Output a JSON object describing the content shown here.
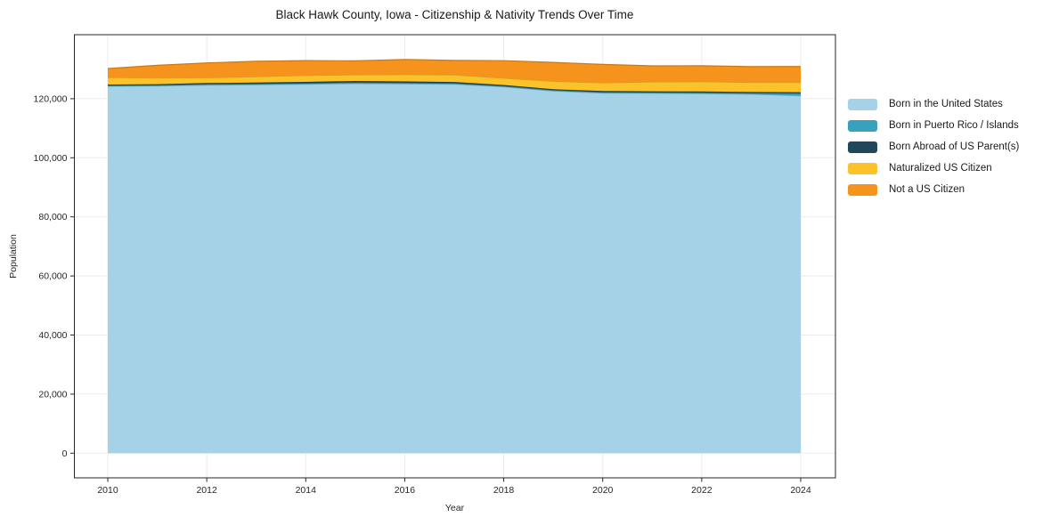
{
  "figure": {
    "title": "Black Hawk County, Iowa - Citizenship & Nativity Trends Over Time",
    "xlabel": "Year",
    "ylabel": "Population"
  },
  "chart_data": {
    "type": "area",
    "stacked": true,
    "title": "Black Hawk County, Iowa - Citizenship & Nativity Trends Over Time",
    "xlabel": "Year",
    "ylabel": "Population",
    "grid": true,
    "legend_position": "right of plot",
    "x": [
      2010,
      2011,
      2012,
      2013,
      2014,
      2015,
      2016,
      2017,
      2018,
      2019,
      2020,
      2021,
      2022,
      2023,
      2024
    ],
    "series": [
      {
        "name": "Born in the United States",
        "color": "#a6d2e7",
        "values": [
          124200,
          124300,
          124600,
          124700,
          124900,
          125100,
          125000,
          124900,
          124000,
          122600,
          121900,
          121800,
          121700,
          121500,
          121000
        ]
      },
      {
        "name": "Born in Puerto Rico / Islands",
        "color": "#38a2be",
        "values": [
          250,
          250,
          300,
          300,
          300,
          350,
          350,
          300,
          250,
          250,
          300,
          300,
          350,
          400,
          800
        ]
      },
      {
        "name": "Born Abroad of US Parent(s)",
        "color": "#21475a",
        "values": [
          350,
          350,
          400,
          450,
          500,
          550,
          500,
          450,
          400,
          350,
          400,
          400,
          400,
          350,
          400
        ]
      },
      {
        "name": "Naturalized US Citizen",
        "color": "#fcc22a",
        "values": [
          2400,
          2100,
          1800,
          2000,
          2200,
          2100,
          2300,
          2400,
          2300,
          2700,
          2800,
          3200,
          3300,
          3300,
          3300
        ]
      },
      {
        "name": "Not a US Citizen",
        "color": "#f6931d",
        "values": [
          3000,
          4300,
          5000,
          5200,
          5000,
          4700,
          5100,
          4900,
          5900,
          6400,
          6200,
          5400,
          5400,
          5300,
          5400
        ]
      }
    ],
    "x_tick_values": [
      2010,
      2012,
      2014,
      2016,
      2018,
      2020,
      2022,
      2024
    ],
    "x_tick_labels": [
      "2010",
      "2012",
      "2014",
      "2016",
      "2018",
      "2020",
      "2022",
      "2024"
    ],
    "y_tick_values": [
      0,
      20000,
      40000,
      60000,
      80000,
      100000,
      120000
    ],
    "y_tick_labels": [
      "0",
      "20,000",
      "40,000",
      "60,000",
      "80,000",
      "100,000",
      "120,000"
    ],
    "ylim": [
      -8300,
      141700
    ],
    "xlim": [
      2009.3,
      2024.7
    ],
    "colors": {
      "grid": "#ebebeb",
      "frame": "#262626",
      "tick_text": "#262626",
      "title_text": "#1a1a1a"
    }
  }
}
